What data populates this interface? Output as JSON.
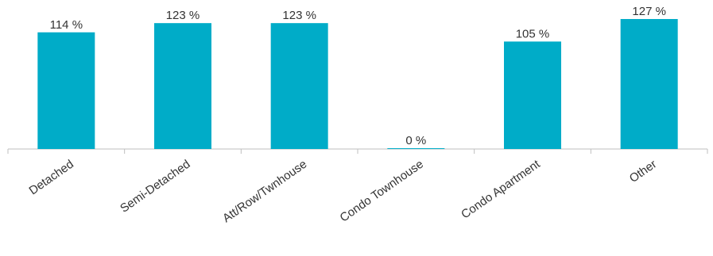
{
  "colors": {
    "bar": "#00acc8",
    "axis": "#bfbfbf",
    "text": "#333333"
  },
  "chart_data": {
    "type": "bar",
    "categories": [
      "Detached",
      "Semi-Detached",
      "Att/Row/Twnhouse",
      "Condo Townhouse",
      "Condo Apartment",
      "Other"
    ],
    "values": [
      114,
      123,
      123,
      0,
      105,
      127
    ],
    "value_labels": [
      "114 %",
      "123 %",
      "123 %",
      "0 %",
      "105 %",
      "127 %"
    ],
    "ylim": [
      0,
      127
    ],
    "grid": false,
    "legend": "none",
    "x_tick_rotation": "diagonal"
  }
}
